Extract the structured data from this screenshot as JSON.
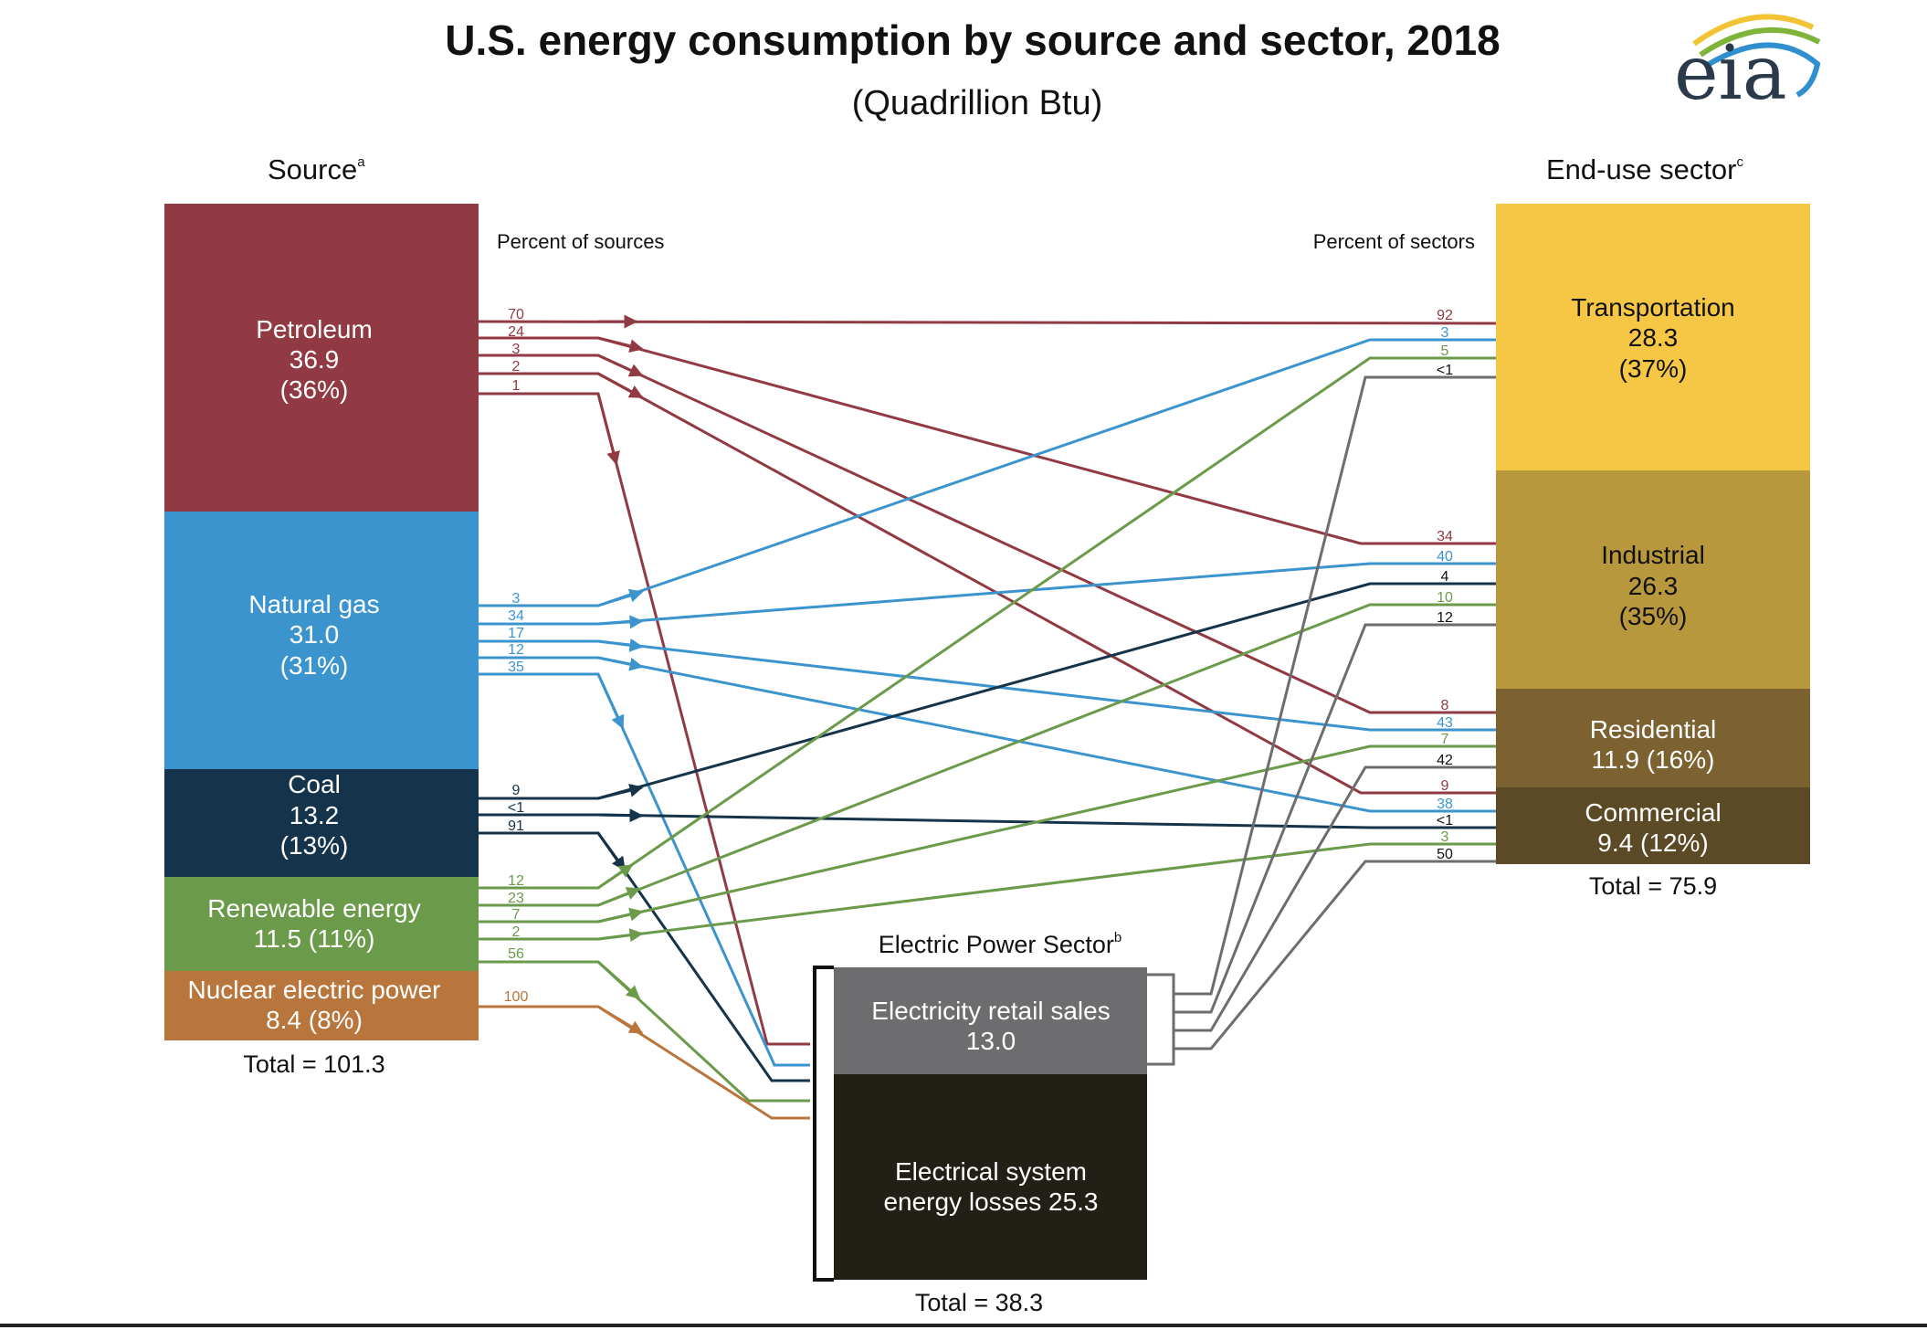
{
  "title": "U.S. energy consumption by source and sector, 2018",
  "subtitle": "(Quadrillion Btu)",
  "logo": {
    "text": "eia",
    "swoosh_colors": [
      "#f2c434",
      "#7fb43a",
      "#2f8fcf"
    ]
  },
  "source_header": {
    "text": "Source",
    "sup": "a"
  },
  "sector_header": {
    "text": "End-use sector",
    "sup": "c"
  },
  "percent_of_sources": "Percent of sources",
  "percent_of_sectors": "Percent of sectors",
  "colors": {
    "petroleum": "#923a43",
    "natural_gas": "#3c94cf",
    "coal": "#15334a",
    "renewable": "#6a9a4a",
    "nuclear": "#b8763c",
    "transportation": "#f6c744",
    "industrial": "#b8983d",
    "residential": "#7b6230",
    "commercial": "#5c4a26",
    "retail": "#6d6d6f",
    "losses": "#221f16",
    "gray_flow": "#6d6d6f"
  },
  "sources": [
    {
      "key": "petroleum",
      "lines": [
        "Petroleum",
        "36.9",
        "(36%)"
      ],
      "flow_labels": [
        "70",
        "24",
        "3",
        "2",
        "1"
      ]
    },
    {
      "key": "natural_gas",
      "lines": [
        "Natural gas",
        "31.0",
        "(31%)"
      ],
      "flow_labels": [
        "3",
        "34",
        "17",
        "12",
        "35"
      ]
    },
    {
      "key": "coal",
      "lines": [
        "Coal",
        "13.2",
        "(13%)"
      ],
      "flow_labels": [
        "9",
        "<1",
        "91"
      ]
    },
    {
      "key": "renewable",
      "lines": [
        "Renewable energy",
        "11.5 (11%)"
      ],
      "flow_labels": [
        "12",
        "23",
        "7",
        "2",
        "56"
      ]
    },
    {
      "key": "nuclear",
      "lines": [
        "Nuclear electric power",
        "8.4 (8%)"
      ],
      "flow_labels": [
        "100"
      ]
    }
  ],
  "source_total": "Total = 101.3",
  "sectors": [
    {
      "key": "transportation",
      "lines": [
        "Transportation",
        "28.3",
        "(37%)"
      ],
      "flow_labels": [
        "92",
        "3",
        "5",
        "<1"
      ]
    },
    {
      "key": "industrial",
      "lines": [
        "Industrial",
        "26.3",
        "(35%)"
      ],
      "flow_labels": [
        "34",
        "40",
        "4",
        "10",
        "12"
      ]
    },
    {
      "key": "residential",
      "lines": [
        "Residential",
        "11.9 (16%)"
      ],
      "flow_labels": [
        "8",
        "43",
        "7",
        "42"
      ]
    },
    {
      "key": "commercial",
      "lines": [
        "Commercial",
        "9.4 (12%)"
      ],
      "flow_labels": [
        "9",
        "38",
        "<1",
        "3",
        "50"
      ]
    }
  ],
  "sector_total": "Total = 75.9",
  "electric": {
    "header": {
      "text": "Electric Power Sector",
      "sup": "b"
    },
    "retail_lines": [
      "Electricity retail sales",
      "13.0"
    ],
    "losses_lines": [
      "Electrical system",
      "energy losses  25.3"
    ],
    "total": "Total = 38.3"
  }
}
